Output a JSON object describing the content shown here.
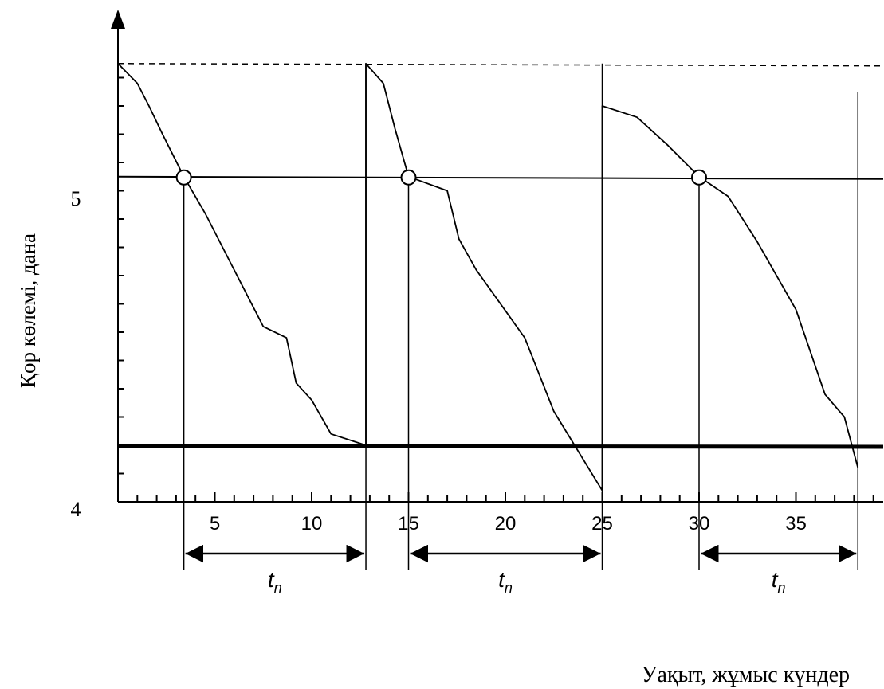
{
  "chart_data": {
    "type": "line",
    "title": "",
    "xlabel": "Уақыт, жұмыс күндер",
    "ylabel": "Қор көлемі, дана",
    "xlim": [
      0,
      40
    ],
    "ylim": [
      4,
      5.6
    ],
    "x_ticks": [
      5,
      10,
      15,
      20,
      25,
      30,
      35
    ],
    "x_tick_labels": [
      "5",
      "10",
      "15",
      "20",
      "25",
      "30",
      "35"
    ],
    "y_tick_labels": [
      {
        "value": 5,
        "label": "5"
      },
      {
        "value": 4,
        "label": "4"
      }
    ],
    "y_minor_ticks": [
      4.1,
      4.2,
      4.3,
      4.4,
      4.5,
      4.6,
      4.7,
      4.8,
      4.9,
      5.0,
      5.1,
      5.2,
      5.3,
      5.4,
      5.5
    ],
    "max_level": 5.55,
    "reorder_level": 5.15,
    "safety_level": 4.2,
    "series": [
      {
        "values": [
          {
            "x": 0,
            "y": 5.55
          },
          {
            "x": 1,
            "y": 5.48
          },
          {
            "x": 1.6,
            "y": 5.4
          },
          {
            "x": 2.3,
            "y": 5.3
          },
          {
            "x": 3.4,
            "y": 5.15
          },
          {
            "x": 4.5,
            "y": 5.02
          },
          {
            "x": 6,
            "y": 4.82
          },
          {
            "x": 7.5,
            "y": 4.62
          },
          {
            "x": 8.7,
            "y": 4.58
          },
          {
            "x": 9.2,
            "y": 4.42
          },
          {
            "x": 10,
            "y": 4.36
          },
          {
            "x": 11,
            "y": 4.24
          },
          {
            "x": 12.8,
            "y": 4.2
          },
          {
            "x": 12.8,
            "y": 5.55
          },
          {
            "x": 13.7,
            "y": 5.48
          },
          {
            "x": 14.3,
            "y": 5.32
          },
          {
            "x": 15,
            "y": 5.15
          },
          {
            "x": 17,
            "y": 5.1
          },
          {
            "x": 17.6,
            "y": 4.93
          },
          {
            "x": 18.5,
            "y": 4.82
          },
          {
            "x": 21,
            "y": 4.58
          },
          {
            "x": 22.5,
            "y": 4.32
          },
          {
            "x": 25,
            "y": 4.04
          },
          {
            "x": 25,
            "y": 5.4
          },
          {
            "x": 26.8,
            "y": 5.36
          },
          {
            "x": 28.4,
            "y": 5.26
          },
          {
            "x": 30,
            "y": 5.15
          },
          {
            "x": 31.5,
            "y": 5.08
          },
          {
            "x": 33,
            "y": 4.92
          },
          {
            "x": 35,
            "y": 4.68
          },
          {
            "x": 36.5,
            "y": 4.38
          },
          {
            "x": 37.5,
            "y": 4.3
          },
          {
            "x": 38.2,
            "y": 4.12
          }
        ]
      }
    ],
    "reorder_points": [
      {
        "x": 3.4,
        "y": 5.15
      },
      {
        "x": 15,
        "y": 5.15
      },
      {
        "x": 30,
        "y": 5.15
      }
    ],
    "delivery_times": [
      12.8,
      25,
      38.2
    ],
    "lead_time_intervals": [
      {
        "start": 3.4,
        "end": 12.8,
        "label": "t",
        "sub": "n"
      },
      {
        "start": 15,
        "end": 25,
        "label": "t",
        "sub": "n"
      },
      {
        "start": 30,
        "end": 38.2,
        "label": "t",
        "sub": "n"
      }
    ],
    "grid": false,
    "legend": "none"
  }
}
